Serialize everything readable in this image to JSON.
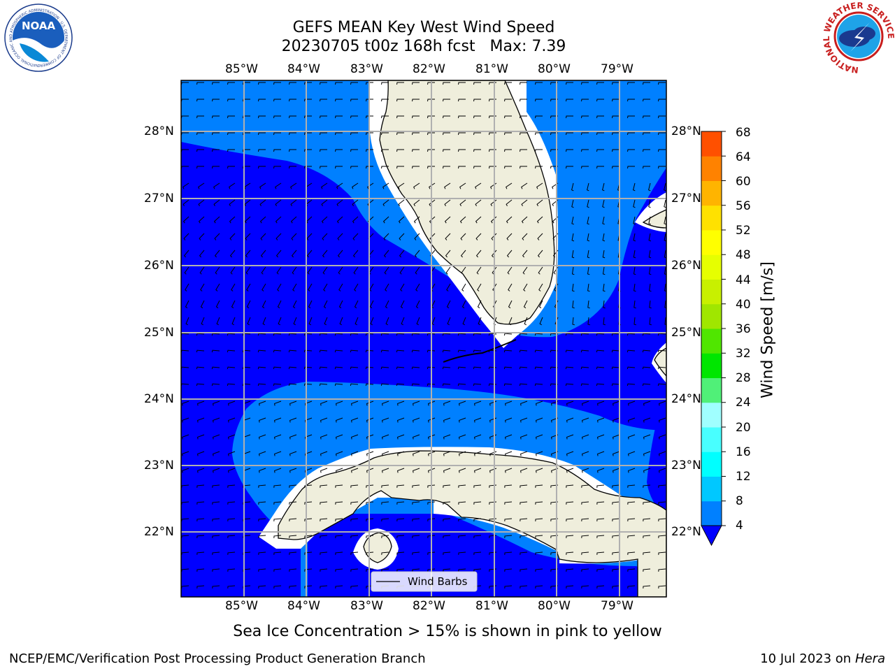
{
  "header": {
    "title_line1": "GEFS MEAN Key West Wind Speed",
    "title_line2": "20230705 t00z 168h fcst   Max: 7.39"
  },
  "logos": {
    "noaa_text": "NOAA",
    "noaa_ring_text": "NATIONAL OCEANIC AND ATMOSPHERIC ADMINISTRATION · U.S. DEPARTMENT OF COMMERCE",
    "nws_ring_text": "NATIONAL WEATHER SERVICE"
  },
  "map": {
    "lon_ticks": [
      "85°W",
      "84°W",
      "83°W",
      "82°W",
      "81°W",
      "80°W",
      "79°W"
    ],
    "lat_ticks": [
      "28°N",
      "27°N",
      "26°N",
      "25°N",
      "24°N",
      "23°N",
      "22°N"
    ],
    "legend_label": "Wind Barbs",
    "colors": {
      "land": "#efeedc",
      "ocean_4_8": "#0080ff",
      "ocean_below_4": "#0000ff",
      "grid": "#b0b0b0"
    }
  },
  "colorbar": {
    "label": "Wind Speed [m/s]",
    "levels": [
      "4",
      "8",
      "12",
      "16",
      "20",
      "24",
      "28",
      "32",
      "36",
      "40",
      "44",
      "48",
      "52",
      "56",
      "60",
      "64",
      "68"
    ],
    "colors": [
      "#0080ff",
      "#00c8ff",
      "#00ffff",
      "#48ffff",
      "#a0ffff",
      "#50f078",
      "#00e600",
      "#50e600",
      "#a0e600",
      "#c8f000",
      "#e6ff00",
      "#ffff00",
      "#ffe100",
      "#ffb400",
      "#ff8200",
      "#ff5000",
      "#ff2800",
      "#ff0000"
    ],
    "extend_color": "#0000ff"
  },
  "footer": {
    "sea_ice_note": "Sea Ice Concentration > 15% is shown in pink to yellow",
    "branch": "NCEP/EMC/Verification Post Processing Product Generation Branch",
    "date_text": "10 Jul 2023 on ",
    "host": "Hera"
  }
}
